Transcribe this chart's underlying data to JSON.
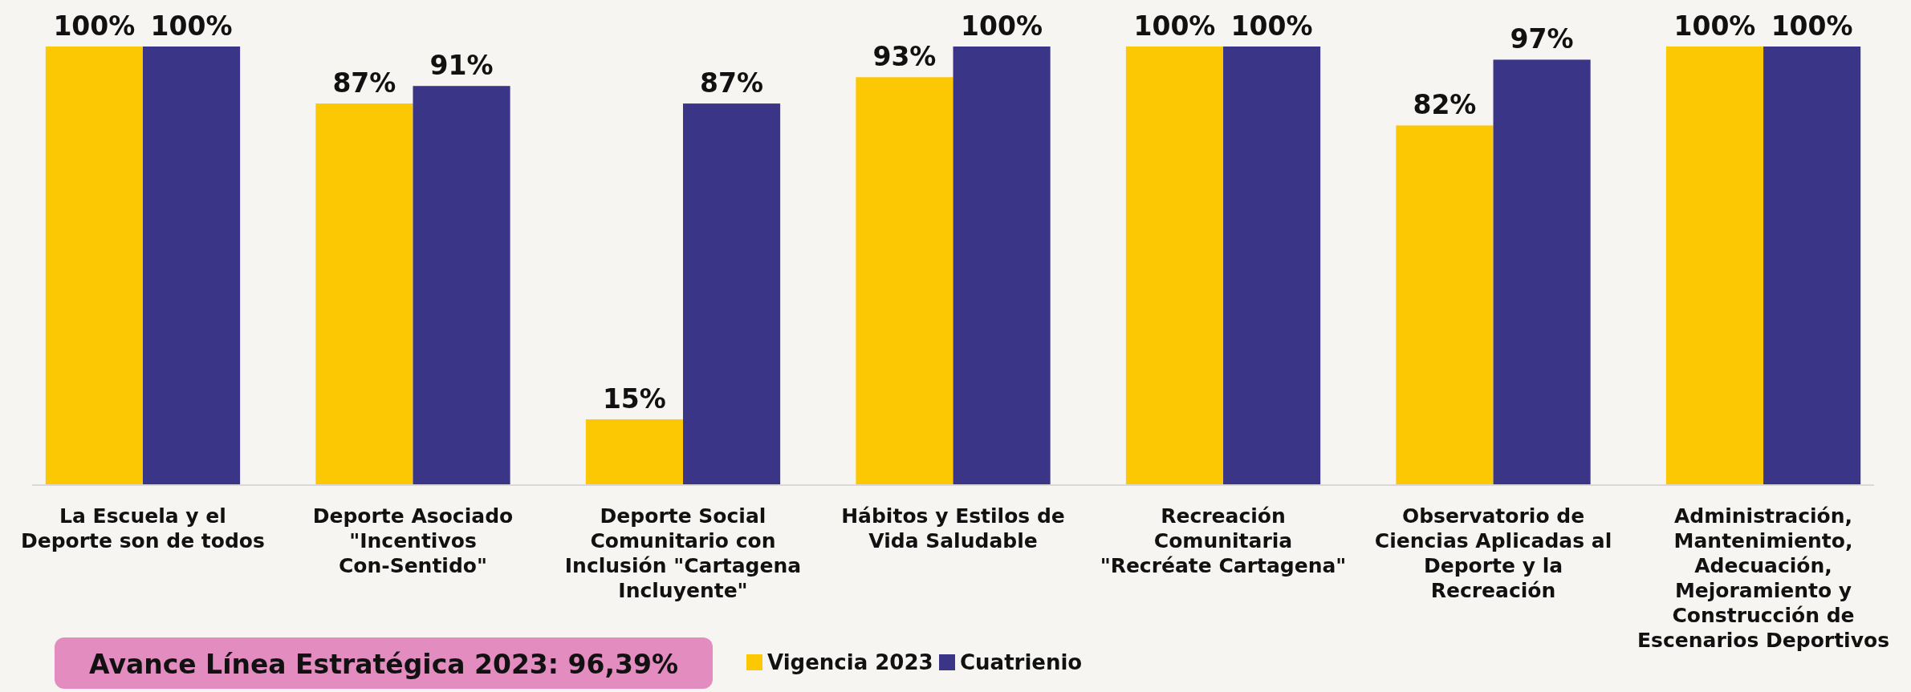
{
  "chart_data": {
    "type": "bar",
    "categories": [
      "La Escuela y el Deporte son de todos",
      "Deporte Asociado \"Incentivos Con-Sentido\"",
      "Deporte Social Comunitario con Inclusión \"Cartagena Incluyente\"",
      "Hábitos y Estilos de Vida Saludable",
      "Recreación Comunitaria \"Recréate Cartagena\"",
      "Observatorio de Ciencias Aplicadas al Deporte y la Recreación",
      "Administración, Mantenimiento, Adecuación, Mejoramiento y Construcción de Escenarios Deportivos"
    ],
    "series": [
      {
        "name": "Vigencia 2023",
        "color": "#fcc804",
        "values": [
          100,
          87,
          15,
          93,
          100,
          82,
          100
        ],
        "value_labels": [
          "100%",
          "87%",
          "15%",
          "93%",
          "100%",
          "82%",
          "100%"
        ]
      },
      {
        "name": "Cuatrienio",
        "color": "#3a3586",
        "values": [
          100,
          91,
          87,
          100,
          100,
          97,
          100
        ],
        "value_labels": [
          "100%",
          "91%",
          "87%",
          "100%",
          "100%",
          "97%",
          "100%"
        ]
      }
    ],
    "legend": "bottom",
    "annotations": [
      "Avance Línea Estratégica 2023: 96,39%"
    ]
  }
}
